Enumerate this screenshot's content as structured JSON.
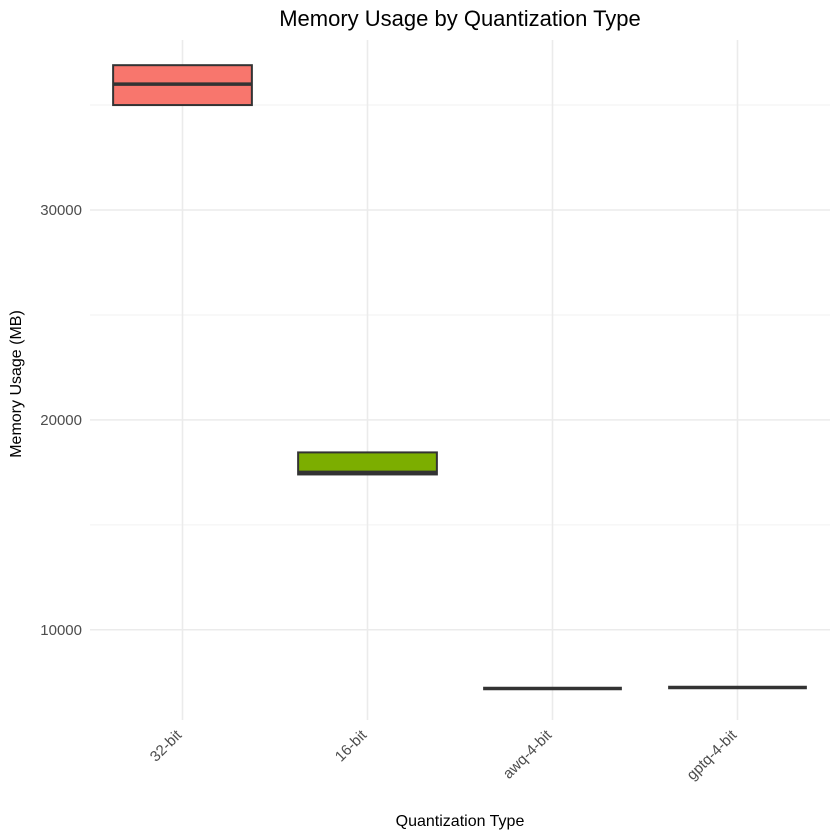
{
  "chart_data": {
    "type": "boxplot",
    "title": "Memory Usage by Quantization Type",
    "xlabel": "Quantization Type",
    "ylabel": "Memory Usage (MB)",
    "ylim": [
      5700,
      38100
    ],
    "yticks": [
      10000,
      20000,
      30000
    ],
    "grid": true,
    "legend": "none",
    "categories": [
      "32-bit",
      "16-bit",
      "awq-4-bit",
      "gptq-4-bit"
    ],
    "boxes": [
      {
        "category": "32-bit",
        "q1": 35000,
        "median": 36000,
        "q3": 36900,
        "color": "#F8766D"
      },
      {
        "category": "16-bit",
        "q1": 17400,
        "median": 17500,
        "q3": 18450,
        "color": "#7CAE00"
      },
      {
        "category": "awq-4-bit",
        "q1": 7200,
        "median": 7200,
        "q3": 7200,
        "color": "#00BFC4"
      },
      {
        "category": "gptq-4-bit",
        "q1": 7250,
        "median": 7250,
        "q3": 7250,
        "color": "#C77CFF"
      }
    ]
  }
}
